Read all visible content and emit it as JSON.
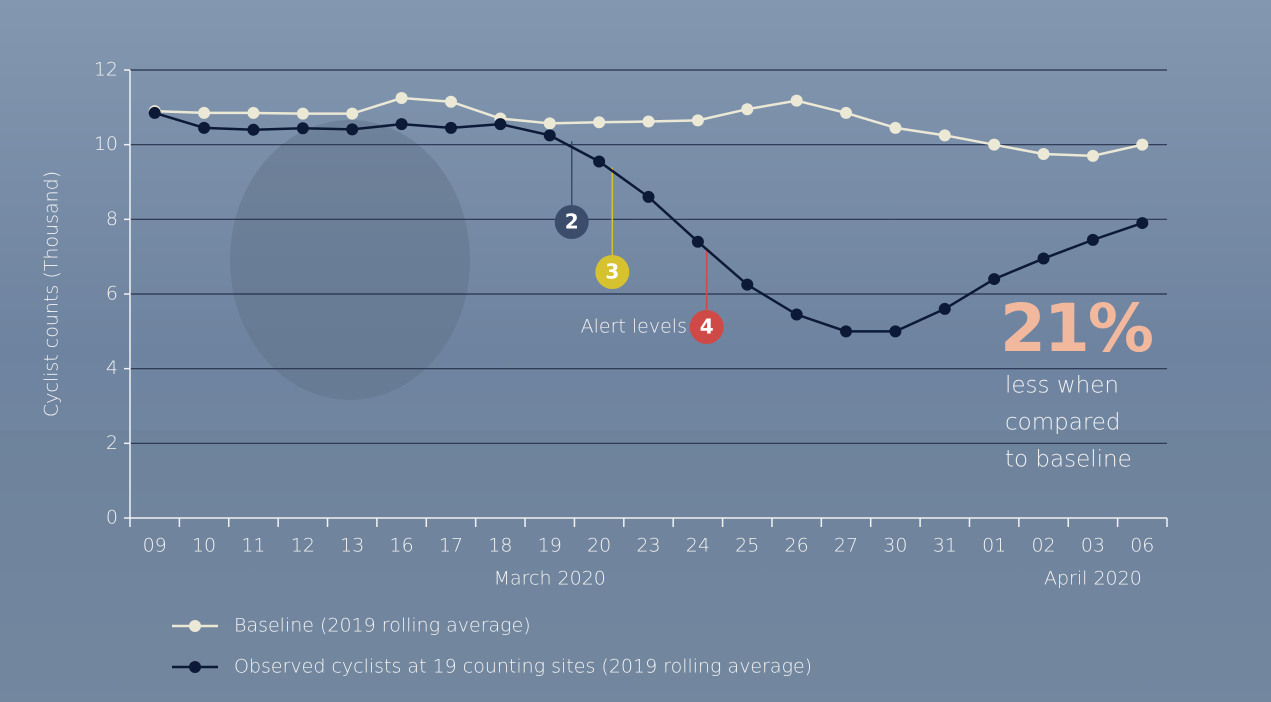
{
  "chart_data": {
    "type": "line",
    "y_label": "Cyclist counts (Thousand)",
    "categories": [
      "09",
      "10",
      "11",
      "12",
      "13",
      "16",
      "17",
      "18",
      "19",
      "20",
      "23",
      "24",
      "25",
      "26",
      "27",
      "30",
      "31",
      "01",
      "02",
      "03",
      "06"
    ],
    "month_labels": [
      "March 2020",
      "April 2020"
    ],
    "ylim": [
      0,
      12
    ],
    "yticks": [
      0,
      2,
      4,
      6,
      8,
      10,
      12
    ],
    "grid": true,
    "series": [
      {
        "name": "Baseline (2019 rolling average)",
        "color": "#ebe8d6",
        "values": [
          10.9,
          10.85,
          10.85,
          10.83,
          10.83,
          11.25,
          11.15,
          10.7,
          10.57,
          10.6,
          10.62,
          10.65,
          10.95,
          11.18,
          10.85,
          10.45,
          10.25,
          10.0,
          9.75,
          9.7,
          10.0
        ]
      },
      {
        "name": "Observed cyclists at 19 counting sites (2019 rolling average)",
        "color": "#0c1a38",
        "values": [
          10.85,
          10.45,
          10.4,
          10.44,
          10.41,
          10.55,
          10.45,
          10.55,
          10.25,
          9.55,
          8.6,
          7.4,
          6.25,
          5.45,
          5.0,
          5.0,
          5.6,
          6.4,
          6.95,
          7.45,
          7.9
        ]
      }
    ],
    "alert_caption": "Alert levels",
    "alerts": [
      {
        "label": "2",
        "color": "#3b4d6a"
      },
      {
        "label": "3",
        "color": "#d6c12e"
      },
      {
        "label": "4",
        "color": "#cf4a47"
      }
    ],
    "callout": {
      "big": "21%",
      "lines": [
        "less when",
        "compared",
        "to baseline"
      ]
    }
  }
}
